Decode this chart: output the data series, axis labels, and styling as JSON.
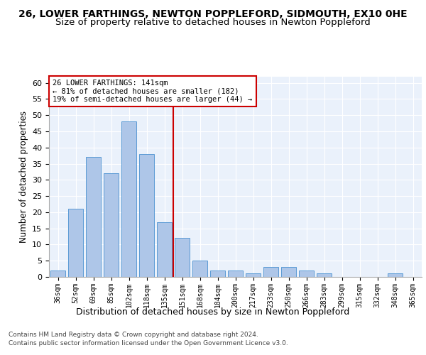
{
  "title1": "26, LOWER FARTHINGS, NEWTON POPPLEFORD, SIDMOUTH, EX10 0HE",
  "title2": "Size of property relative to detached houses in Newton Poppleford",
  "xlabel": "Distribution of detached houses by size in Newton Poppleford",
  "ylabel": "Number of detached properties",
  "footer1": "Contains HM Land Registry data © Crown copyright and database right 2024.",
  "footer2": "Contains public sector information licensed under the Open Government Licence v3.0.",
  "bar_labels": [
    "36sqm",
    "52sqm",
    "69sqm",
    "85sqm",
    "102sqm",
    "118sqm",
    "135sqm",
    "151sqm",
    "168sqm",
    "184sqm",
    "200sqm",
    "217sqm",
    "233sqm",
    "250sqm",
    "266sqm",
    "283sqm",
    "299sqm",
    "315sqm",
    "332sqm",
    "348sqm",
    "365sqm"
  ],
  "bar_values": [
    2,
    21,
    37,
    32,
    48,
    38,
    17,
    12,
    5,
    2,
    2,
    1,
    3,
    3,
    2,
    1,
    0,
    0,
    0,
    1,
    0
  ],
  "bar_color": "#aec6e8",
  "bar_edge_color": "#5b9bd5",
  "vline_x_idx": 7,
  "vline_color": "#cc0000",
  "annotation_text": "26 LOWER FARTHINGS: 141sqm\n← 81% of detached houses are smaller (182)\n19% of semi-detached houses are larger (44) →",
  "annotation_box_color": "#ffffff",
  "annotation_box_edge": "#cc0000",
  "ylim": [
    0,
    62
  ],
  "yticks": [
    0,
    5,
    10,
    15,
    20,
    25,
    30,
    35,
    40,
    45,
    50,
    55,
    60
  ],
  "bg_color": "#eaf1fb",
  "title1_fontsize": 10,
  "title2_fontsize": 9.5,
  "xlabel_fontsize": 9,
  "ylabel_fontsize": 8.5,
  "footer_fontsize": 6.5
}
